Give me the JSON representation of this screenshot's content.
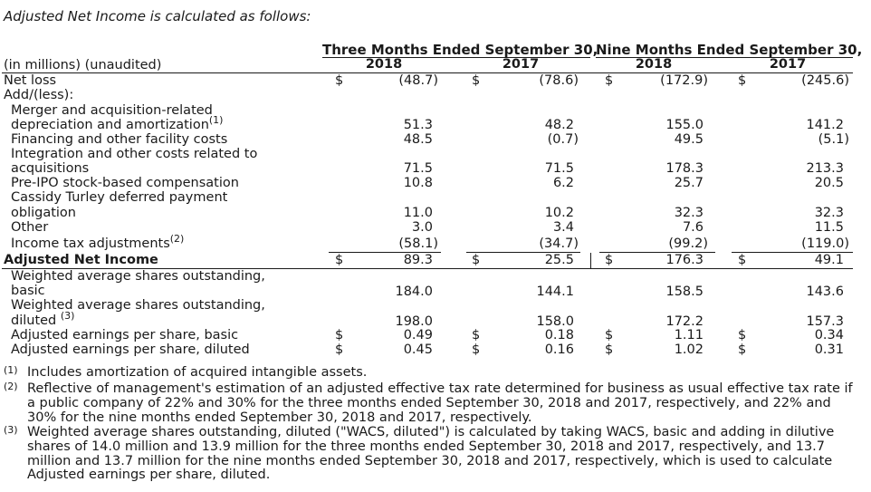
{
  "title": "Adjusted Net Income is calculated as follows:",
  "headers": {
    "three_months": "Three Months Ended September 30,",
    "nine_months": "Nine Months Ended September 30,",
    "years": [
      "2018",
      "2017",
      "2018",
      "2017"
    ],
    "units": "(in millions) (unaudited)"
  },
  "currency": "$",
  "rows": {
    "net_loss": {
      "label": "Net loss",
      "values": [
        "(48.7)",
        "(78.6)",
        "(172.9)",
        "(245.6)"
      ]
    },
    "add_less": {
      "label": "Add/(less):"
    },
    "merger_line1": {
      "label": "Merger and acquisition-related"
    },
    "merger_line2": {
      "label": "depreciation and amortization",
      "marker": "(1)",
      "values": [
        "51.3",
        "48.2",
        "155.0",
        "141.2"
      ]
    },
    "financing": {
      "label": "Financing and other facility costs",
      "values": [
        "48.5",
        "(0.7)",
        "49.5",
        "(5.1)"
      ]
    },
    "integration_line1": {
      "label": "Integration and other costs related to"
    },
    "integration_line2": {
      "label": "acquisitions",
      "values": [
        "71.5",
        "71.5",
        "178.3",
        "213.3"
      ]
    },
    "preipo": {
      "label": "Pre-IPO stock-based compensation",
      "values": [
        "10.8",
        "6.2",
        "25.7",
        "20.5"
      ]
    },
    "cassidy_line1": {
      "label": "Cassidy Turley deferred payment"
    },
    "cassidy_line2": {
      "label": "obligation",
      "values": [
        "11.0",
        "10.2",
        "32.3",
        "32.3"
      ]
    },
    "other": {
      "label": "Other",
      "values": [
        "3.0",
        "3.4",
        "7.6",
        "11.5"
      ]
    },
    "tax": {
      "label": "Income tax adjustments",
      "marker": "(2)",
      "values": [
        "(58.1)",
        "(34.7)",
        "(99.2)",
        "(119.0)"
      ]
    },
    "adjusted_net_income": {
      "label": "Adjusted Net Income",
      "values": [
        "89.3",
        "25.5",
        "176.3",
        "49.1"
      ]
    },
    "wa_basic_line1": {
      "label": "Weighted average shares outstanding,"
    },
    "wa_basic_line2": {
      "label": "basic",
      "values": [
        "184.0",
        "144.1",
        "158.5",
        "143.6"
      ]
    },
    "wa_diluted_line1": {
      "label": "Weighted average shares outstanding,"
    },
    "wa_diluted_line2": {
      "label": "diluted",
      "marker": "(3)",
      "values": [
        "198.0",
        "158.0",
        "172.2",
        "157.3"
      ]
    },
    "eps_basic": {
      "label": "Adjusted earnings per share, basic",
      "values": [
        "0.49",
        "0.18",
        "1.11",
        "0.34"
      ]
    },
    "eps_diluted": {
      "label": "Adjusted earnings per share, diluted",
      "values": [
        "0.45",
        "0.16",
        "1.02",
        "0.31"
      ]
    }
  },
  "footnotes": [
    {
      "marker": "(1)",
      "text": "Includes amortization of acquired intangible assets."
    },
    {
      "marker": "(2)",
      "text": "Reflective of management's estimation of an adjusted effective tax rate determined for business as usual effective tax rate if a public company of 22% and 30% for the three months ended September 30, 2018 and 2017, respectively, and 22% and 30% for the nine months ended September 30, 2018 and 2017, respectively."
    },
    {
      "marker": "(3)",
      "text": "Weighted average shares outstanding, diluted (\"WACS, diluted\") is calculated by taking WACS, basic and adding in dilutive shares of 14.0 million and 13.9 million for the three months ended September 30, 2018 and 2017, respectively, and 13.7 million and 13.7 million for the nine months ended September 30, 2018 and 2017, respectively, which is used to calculate Adjusted earnings per share, diluted."
    }
  ]
}
